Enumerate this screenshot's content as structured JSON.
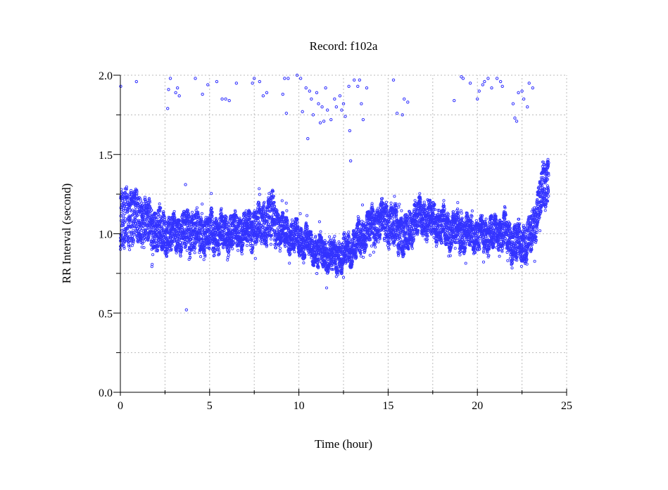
{
  "chart_data": {
    "type": "scatter",
    "title": "Record:  f102a",
    "xlabel": "Time (hour)",
    "ylabel": "RR Interval (second)",
    "xlim": [
      0,
      25
    ],
    "ylim": [
      0,
      2.0
    ],
    "xticks": [
      "0",
      "5",
      "10",
      "15",
      "20",
      "25"
    ],
    "xtick_values": [
      0,
      5,
      10,
      15,
      20,
      25
    ],
    "yticks": [
      "0.0",
      "0.5",
      "1.0",
      "1.5",
      "2.0"
    ],
    "ytick_values": [
      0,
      0.5,
      1.0,
      1.5,
      2.0
    ],
    "grid": true,
    "marker_color": "#3333ff",
    "band_description": "dense RR intervals per hour: [hour, low, high]",
    "band": [
      [
        0.0,
        0.88,
        1.25
      ],
      [
        0.5,
        0.92,
        1.3
      ],
      [
        1.0,
        0.95,
        1.25
      ],
      [
        1.5,
        0.92,
        1.2
      ],
      [
        2.0,
        0.9,
        1.15
      ],
      [
        2.5,
        0.88,
        1.12
      ],
      [
        3.0,
        0.9,
        1.1
      ],
      [
        3.5,
        0.9,
        1.12
      ],
      [
        4.0,
        0.9,
        1.15
      ],
      [
        4.5,
        0.88,
        1.12
      ],
      [
        5.0,
        0.9,
        1.12
      ],
      [
        5.5,
        0.9,
        1.1
      ],
      [
        6.0,
        0.9,
        1.12
      ],
      [
        6.5,
        0.92,
        1.12
      ],
      [
        7.0,
        0.92,
        1.12
      ],
      [
        7.5,
        0.93,
        1.15
      ],
      [
        8.0,
        0.95,
        1.2
      ],
      [
        8.5,
        0.95,
        1.27
      ],
      [
        9.0,
        0.92,
        1.12
      ],
      [
        9.5,
        0.9,
        1.08
      ],
      [
        10.0,
        0.88,
        1.05
      ],
      [
        10.5,
        0.85,
        1.02
      ],
      [
        11.0,
        0.8,
        0.98
      ],
      [
        11.5,
        0.78,
        0.95
      ],
      [
        12.0,
        0.75,
        0.95
      ],
      [
        12.5,
        0.78,
        0.97
      ],
      [
        13.0,
        0.82,
        1.0
      ],
      [
        13.5,
        0.88,
        1.08
      ],
      [
        14.0,
        0.95,
        1.15
      ],
      [
        14.5,
        0.97,
        1.18
      ],
      [
        15.0,
        0.95,
        1.2
      ],
      [
        15.5,
        0.9,
        1.15
      ],
      [
        16.0,
        0.85,
        1.1
      ],
      [
        16.5,
        1.0,
        1.2
      ],
      [
        17.0,
        1.0,
        1.2
      ],
      [
        17.5,
        0.98,
        1.18
      ],
      [
        18.0,
        0.95,
        1.15
      ],
      [
        18.5,
        0.92,
        1.12
      ],
      [
        19.0,
        0.9,
        1.12
      ],
      [
        19.5,
        0.92,
        1.1
      ],
      [
        20.0,
        0.9,
        1.08
      ],
      [
        20.5,
        0.9,
        1.1
      ],
      [
        21.0,
        0.9,
        1.1
      ],
      [
        21.5,
        0.92,
        1.12
      ],
      [
        22.0,
        0.82,
        1.05
      ],
      [
        22.5,
        0.83,
        1.05
      ],
      [
        23.0,
        0.85,
        1.1
      ],
      [
        23.5,
        1.1,
        1.35
      ],
      [
        24.0,
        1.2,
        1.52
      ]
    ],
    "outliers": [
      [
        0.02,
        1.93
      ],
      [
        0.9,
        1.96
      ],
      [
        2.65,
        1.79
      ],
      [
        2.7,
        1.91
      ],
      [
        2.8,
        1.98
      ],
      [
        3.1,
        1.89
      ],
      [
        3.2,
        1.92
      ],
      [
        3.3,
        1.87
      ],
      [
        4.2,
        1.98
      ],
      [
        4.6,
        1.88
      ],
      [
        4.9,
        1.94
      ],
      [
        5.4,
        1.96
      ],
      [
        5.7,
        1.85
      ],
      [
        5.9,
        1.85
      ],
      [
        6.1,
        1.84
      ],
      [
        6.5,
        1.95
      ],
      [
        7.4,
        1.95
      ],
      [
        7.5,
        1.98
      ],
      [
        7.8,
        1.96
      ],
      [
        8.0,
        1.87
      ],
      [
        8.2,
        1.89
      ],
      [
        9.1,
        1.88
      ],
      [
        9.2,
        1.98
      ],
      [
        9.4,
        1.98
      ],
      [
        9.3,
        1.76
      ],
      [
        9.9,
        2.0
      ],
      [
        10.1,
        1.98
      ],
      [
        10.2,
        1.77
      ],
      [
        10.4,
        1.92
      ],
      [
        10.5,
        1.6
      ],
      [
        10.6,
        1.9
      ],
      [
        10.7,
        1.85
      ],
      [
        10.8,
        1.75
      ],
      [
        11.0,
        1.89
      ],
      [
        11.1,
        1.82
      ],
      [
        11.2,
        1.7
      ],
      [
        11.3,
        1.8
      ],
      [
        11.4,
        1.71
      ],
      [
        11.5,
        1.92
      ],
      [
        11.6,
        1.78
      ],
      [
        11.8,
        1.72
      ],
      [
        12.0,
        1.85
      ],
      [
        12.1,
        1.8
      ],
      [
        12.3,
        1.87
      ],
      [
        12.4,
        1.78
      ],
      [
        12.5,
        1.82
      ],
      [
        12.6,
        1.74
      ],
      [
        12.8,
        1.93
      ],
      [
        12.85,
        1.65
      ],
      [
        12.9,
        1.46
      ],
      [
        13.1,
        1.97
      ],
      [
        13.3,
        1.93
      ],
      [
        13.4,
        1.97
      ],
      [
        13.5,
        1.82
      ],
      [
        13.6,
        1.72
      ],
      [
        13.8,
        1.92
      ],
      [
        15.3,
        1.97
      ],
      [
        15.5,
        1.76
      ],
      [
        15.8,
        1.75
      ],
      [
        15.9,
        1.85
      ],
      [
        16.1,
        1.83
      ],
      [
        18.7,
        1.84
      ],
      [
        19.1,
        1.99
      ],
      [
        19.2,
        1.98
      ],
      [
        19.6,
        1.95
      ],
      [
        20.0,
        1.85
      ],
      [
        20.1,
        1.9
      ],
      [
        20.3,
        1.94
      ],
      [
        20.4,
        1.96
      ],
      [
        20.6,
        1.98
      ],
      [
        20.8,
        1.92
      ],
      [
        21.1,
        1.98
      ],
      [
        21.3,
        1.96
      ],
      [
        21.4,
        1.93
      ],
      [
        22.0,
        1.82
      ],
      [
        22.1,
        1.73
      ],
      [
        22.2,
        1.71
      ],
      [
        22.3,
        1.89
      ],
      [
        22.5,
        1.9
      ],
      [
        22.6,
        1.85
      ],
      [
        22.8,
        1.8
      ],
      [
        22.9,
        1.95
      ],
      [
        23.1,
        1.92
      ],
      [
        3.7,
        0.52
      ],
      [
        3.65,
        1.31
      ]
    ]
  }
}
